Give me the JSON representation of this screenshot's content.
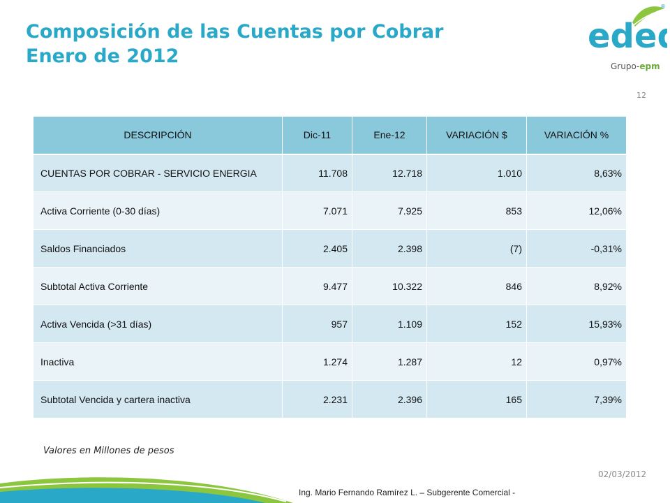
{
  "header": {
    "title_line1": "Composición de las Cuentas por Cobrar",
    "title_line2": "Enero de 2012"
  },
  "logo": {
    "wordmark": "edeq",
    "group_prefix": "Grupo-",
    "group_brand": "epm",
    "registered": "®",
    "colors": {
      "wordmark": "#2aa8c8",
      "leaf": "#6aaa3a"
    }
  },
  "page_number": "12",
  "table": {
    "headers": [
      "DESCRIPCIÓN",
      "Dic-11",
      "Ene-12",
      "VARIACIÓN $",
      "VARIACIÓN %"
    ],
    "rows": [
      [
        "CUENTAS POR COBRAR - SERVICIO ENERGIA",
        "11.708",
        "12.718",
        "1.010",
        "8,63%"
      ],
      [
        "Activa Corriente (0-30 días)",
        "7.071",
        "7.925",
        "853",
        "12,06%"
      ],
      [
        "Saldos Financiados",
        "2.405",
        "2.398",
        "(7)",
        "-0,31%"
      ],
      [
        "Subtotal Activa Corriente",
        "9.477",
        "10.322",
        "846",
        "8,92%"
      ],
      [
        "Activa Vencida (>31 días)",
        "957",
        "1.109",
        "152",
        "15,93%"
      ],
      [
        "Inactiva",
        "1.274",
        "1.287",
        "12",
        "0,97%"
      ],
      [
        "Subtotal Vencida y cartera inactiva",
        "2.231",
        "2.396",
        "165",
        "7,39%"
      ]
    ]
  },
  "note": "Valores en Millones de pesos",
  "date": "02/03/2012",
  "footer": "Ing. Mario Fernando Ramírez L. – Subgerente Comercial -",
  "colors": {
    "title": "#2aa8c8",
    "header_bg": "#8ac8dc",
    "row_dark": "#d4e8f1",
    "row_light": "#eaf3f7",
    "swoosh_green": "#8cc63f",
    "swoosh_blue": "#2aa8c8"
  }
}
